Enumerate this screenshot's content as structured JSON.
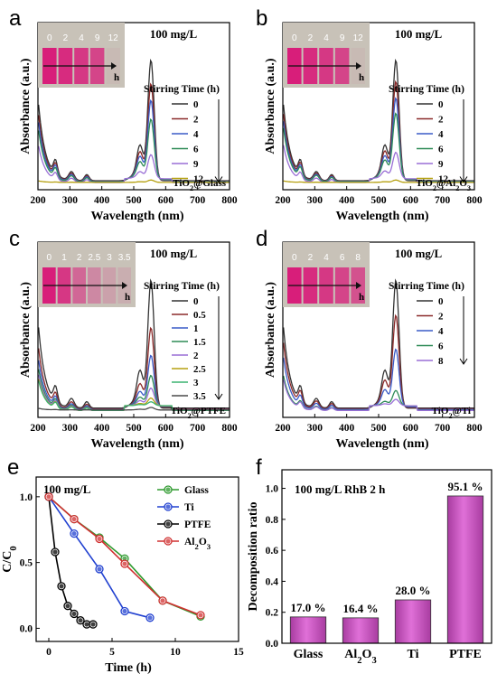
{
  "colors": {
    "s0": "#333333",
    "s05": "#8b2a2a",
    "s1": "#3a5bc7",
    "s15": "#2e8b57",
    "s2": "#9a6fd6",
    "s25": "#b5a010",
    "s3": "#3cb371",
    "s35": "#4a4a4a",
    "glass": "#2e9a2e",
    "ti": "#2040d0",
    "ptfe": "#000000",
    "al2o3": "#d03030",
    "bar_fill": "#e070d8",
    "bar_dark": "#a83ca0",
    "liquid": "#d81e7a",
    "inset_bg": "#c8c2b8"
  },
  "chart_data": [
    {
      "panel": "a",
      "type": "line",
      "title": "100 mg/L",
      "xlabel": "Wavelength (nm)",
      "ylabel": "Absorbance (a.u.)",
      "xlim": [
        200,
        800
      ],
      "xticks": [
        200,
        300,
        400,
        500,
        600,
        700,
        800
      ],
      "legend_title": "Stirring Time (h)",
      "legend_entries": [
        "0",
        "2",
        "4",
        "6",
        "9",
        "12"
      ],
      "label": "TiO₂@Glass",
      "inset_labels": [
        "0",
        "2",
        "4",
        "9",
        "12"
      ],
      "inset_axis": "h",
      "peak_values": [
        1.0,
        0.8,
        0.66,
        0.5,
        0.2,
        0.02
      ],
      "series_colors": [
        "#333333",
        "#8b2a2a",
        "#3a5bc7",
        "#2e8b57",
        "#9a6fd6",
        "#b5a010"
      ]
    },
    {
      "panel": "b",
      "type": "line",
      "title": "100 mg/L",
      "xlabel": "Wavelength (nm)",
      "ylabel": "Absorbance (a.u.)",
      "xlim": [
        200,
        800
      ],
      "xticks": [
        200,
        300,
        400,
        500,
        600,
        700,
        800
      ],
      "legend_title": "Stirring Time (h)",
      "legend_entries": [
        "0",
        "2",
        "4",
        "6",
        "9",
        "12"
      ],
      "label": "TiO₂@Al₂O₃",
      "inset_labels": [
        "0",
        "2",
        "4",
        "9",
        "12"
      ],
      "inset_axis": "h",
      "peak_values": [
        1.0,
        0.82,
        0.68,
        0.55,
        0.22,
        0.02
      ],
      "series_colors": [
        "#333333",
        "#8b2a2a",
        "#3a5bc7",
        "#2e8b57",
        "#9a6fd6",
        "#b5a010"
      ]
    },
    {
      "panel": "c",
      "type": "line",
      "title": "100 mg/L",
      "xlabel": "Wavelength (nm)",
      "ylabel": "Absorbance (a.u.)",
      "xlim": [
        200,
        800
      ],
      "xticks": [
        200,
        300,
        400,
        500,
        600,
        700,
        800
      ],
      "legend_title": "Stirring Time (h)",
      "legend_entries": [
        "0",
        "0.5",
        "1",
        "1.5",
        "2",
        "2.5",
        "3",
        "3.5"
      ],
      "label": "TiO₂@PTFE",
      "inset_labels": [
        "0",
        "1",
        "2",
        "2.5",
        "3",
        "3.5"
      ],
      "inset_axis": "h",
      "peak_values": [
        1.0,
        0.62,
        0.4,
        0.24,
        0.14,
        0.06,
        0.03,
        0.02
      ],
      "series_colors": [
        "#333333",
        "#8b2a2a",
        "#3a5bc7",
        "#2e8b57",
        "#9a6fd6",
        "#b5a010",
        "#3cb371",
        "#4a4a4a"
      ]
    },
    {
      "panel": "d",
      "type": "line",
      "title": "100 mg/L",
      "xlabel": "Wavelength (nm)",
      "ylabel": "Absorbance (a.u.)",
      "xlim": [
        200,
        800
      ],
      "xticks": [
        200,
        300,
        400,
        500,
        600,
        700,
        800
      ],
      "legend_title": "Stirring Time (h)",
      "legend_entries": [
        "0",
        "2",
        "4",
        "6",
        "8"
      ],
      "label": "TiO₂@Ti",
      "inset_labels": [
        "0",
        "2",
        "4",
        "6",
        "8"
      ],
      "inset_axis": "h",
      "peak_values": [
        1.0,
        0.72,
        0.45,
        0.12,
        0.05
      ],
      "series_colors": [
        "#333333",
        "#8b2a2a",
        "#3a5bc7",
        "#2e8b57",
        "#9a6fd6"
      ]
    },
    {
      "panel": "e",
      "type": "line",
      "title": "100 mg/L",
      "xlabel": "Time (h)",
      "ylabel": "C/C",
      "ylabel_sub": "0",
      "xlim": [
        -1,
        15
      ],
      "ylim": [
        -0.1,
        1.15
      ],
      "xticks": [
        0,
        5,
        10,
        15
      ],
      "yticks": [
        0.0,
        0.5,
        1.0
      ],
      "series": [
        {
          "name": "Glass",
          "color": "#2e9a2e",
          "x": [
            0,
            2,
            4,
            6,
            9,
            12
          ],
          "y": [
            1.0,
            0.83,
            0.69,
            0.53,
            0.21,
            0.09
          ]
        },
        {
          "name": "Ti",
          "color": "#2040d0",
          "x": [
            0,
            2,
            4,
            6,
            8
          ],
          "y": [
            1.0,
            0.72,
            0.45,
            0.13,
            0.08
          ]
        },
        {
          "name": "PTFE",
          "color": "#000000",
          "x": [
            0,
            0.5,
            1,
            1.5,
            2,
            2.5,
            3,
            3.5
          ],
          "y": [
            1.0,
            0.58,
            0.32,
            0.17,
            0.11,
            0.06,
            0.03,
            0.03
          ]
        },
        {
          "name": "Al2O3",
          "name_display": "Al₂O₃",
          "color": "#d03030",
          "x": [
            0,
            2,
            4,
            6,
            9,
            12
          ],
          "y": [
            1.0,
            0.83,
            0.68,
            0.49,
            0.21,
            0.1
          ]
        }
      ]
    },
    {
      "panel": "f",
      "type": "bar",
      "title": "100 mg/L RhB  2 h",
      "xlabel": "",
      "ylabel": "Decomposition ratio",
      "categories": [
        "Glass",
        "Al₂O₃",
        "Ti",
        "PTFE"
      ],
      "values": [
        0.17,
        0.164,
        0.28,
        0.951
      ],
      "data_labels": [
        "17.0 %",
        "16.4 %",
        "28.0 %",
        "95.1 %"
      ],
      "ylim": [
        0.0,
        1.12
      ],
      "yticks": [
        0.0,
        0.2,
        0.4,
        0.6,
        0.8,
        1.0
      ]
    }
  ]
}
